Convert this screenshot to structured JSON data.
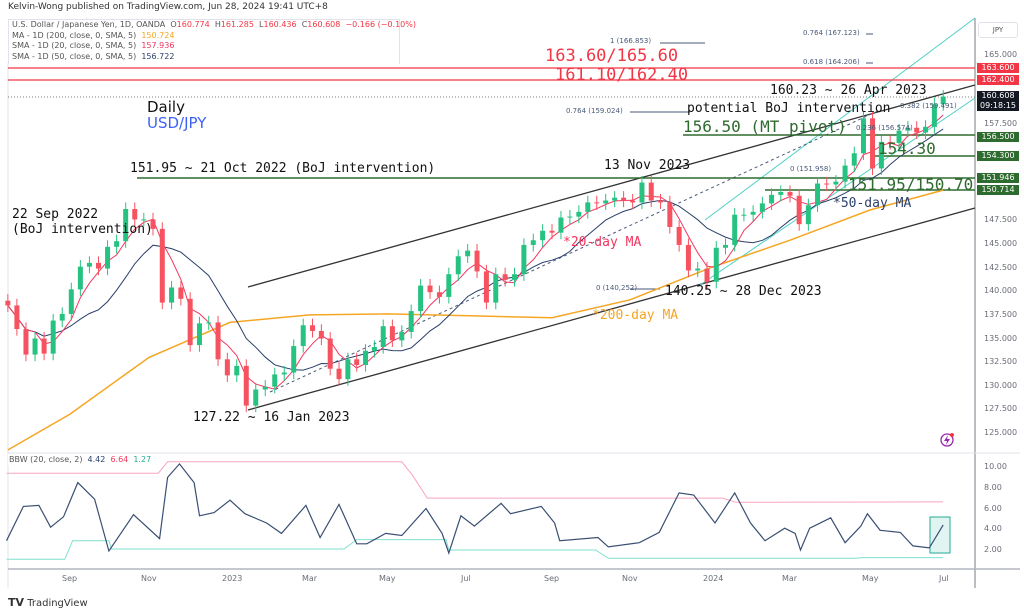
{
  "header": {
    "publisher": "Kelvin-Wong published on TradingView.com, Jun 28, 2024 19:41 UTC+8"
  },
  "legend": {
    "symbol": "U.S. Dollar / Japanese Yen, 1D, OANDA",
    "o_label": "O",
    "o": "160.774",
    "h_label": "H",
    "h": "161.285",
    "l_label": "L",
    "l": "160.436",
    "c_label": "C",
    "c": "160.608",
    "change": "−0.166 (−0.10%)",
    "ma200_label": "MA - 1D (200, close, 0, SMA, 5)",
    "ma200": "150.724",
    "sma20_label": "SMA - 1D (20, close, 0, SMA, 5)",
    "sma20": "157.936",
    "sma50_label": "SMA - 1D (50, close, 0, SMA, 5)",
    "sma50": "156.722",
    "bbw_label": "BBW (20, close, 2)",
    "bbw": "4.42",
    "bbw_upper": "6.64",
    "bbw_lower": "1.27"
  },
  "annotations": {
    "timeframe": "Daily",
    "pair": "USD/JPY",
    "r1": "163.60/165.60",
    "r2": "161.10/162.40",
    "apr_high": "160.23 ~ 26 Apr 2023",
    "boj_potential": "potential BoJ intervention",
    "pivot": "156.50 (MT pivot)",
    "s1": "154.30",
    "s2": "151.95/150.70",
    "ma50": "*50-day MA",
    "ma20": "*20-day MA",
    "ma200": "*200-day MA",
    "nov_high": "13 Nov 2023",
    "dec_low": "140.25 ~ 28 Dec 2023",
    "oct_high": "151.95 ~ 21 Oct 2022 (BoJ intervention)",
    "sep_int1": "22 Sep 2022",
    "sep_int2": "(BoJ intervention)",
    "jan_low": "127.22 ~ 16 Jan 2023"
  },
  "fib_labels": [
    "0.764 (167.123)",
    "0.618 (164.206)",
    "1 (166.853)",
    "0.764 (159.024)",
    "0.382 (159.491)",
    "0.236 (156.574)",
    "0 (151.958)",
    "0 (140,252)"
  ],
  "price_axis": {
    "currency": "JPY",
    "ticks": [
      "165.000",
      "157.500",
      "147.500",
      "145.000",
      "142.500",
      "140.000",
      "137.500",
      "135.000",
      "132.500",
      "130.000",
      "127.500",
      "125.000"
    ],
    "tags": {
      "r_upper": "163.600",
      "r_lower": "162.400",
      "last": "160.608",
      "countdown": "09:18:15",
      "pivot": "156.500",
      "s1": "154.300",
      "s2a": "151.946",
      "s2b": "150.714"
    }
  },
  "bbw_axis": {
    "ticks": [
      "10.00",
      "8.00",
      "6.00",
      "4.00",
      "2.00"
    ]
  },
  "time_axis": [
    "Sep",
    "Nov",
    "2023",
    "Mar",
    "May",
    "Jul",
    "Sep",
    "Nov",
    "2024",
    "Mar",
    "May",
    "Jul"
  ],
  "branding": "TradingView",
  "colors": {
    "up": "#26c281",
    "down": "#f7525f",
    "sma20": "#f2365f",
    "sma50": "#2a3f6b",
    "ma200": "#f5a623",
    "support": "#2e6b2e",
    "resistance": "#f23645",
    "bbw": "#3a4f73",
    "bbw_upper": "#f8a5c2",
    "bbw_lower": "#7fe0cf",
    "accent_blue": "#3d63f5"
  },
  "chart_data": [
    {
      "type": "candlestick",
      "ylim": [
        125,
        167.5
      ],
      "xlabel": "",
      "ylabel": "",
      "close": [
        [
          "2022-07-15",
          138.5
        ],
        [
          "2022-07-22",
          136.0
        ],
        [
          "2022-07-29",
          133.3
        ],
        [
          "2022-08-05",
          135.0
        ],
        [
          "2022-08-12",
          133.4
        ],
        [
          "2022-08-19",
          136.9
        ],
        [
          "2022-08-26",
          137.6
        ],
        [
          "2022-09-02",
          140.2
        ],
        [
          "2022-09-09",
          142.6
        ],
        [
          "2022-09-16",
          143.0
        ],
        [
          "2022-09-23",
          142.4
        ],
        [
          "2022-09-30",
          144.7
        ],
        [
          "2022-10-07",
          145.3
        ],
        [
          "2022-10-14",
          148.7
        ],
        [
          "2022-10-21",
          147.6
        ],
        [
          "2022-10-28",
          147.6
        ],
        [
          "2022-11-04",
          146.6
        ],
        [
          "2022-11-11",
          138.8
        ],
        [
          "2022-11-18",
          140.4
        ],
        [
          "2022-11-25",
          139.2
        ],
        [
          "2022-12-02",
          134.3
        ],
        [
          "2022-12-09",
          136.6
        ],
        [
          "2022-12-16",
          136.7
        ],
        [
          "2022-12-23",
          132.8
        ],
        [
          "2022-12-30",
          131.1
        ],
        [
          "2023-01-06",
          132.1
        ],
        [
          "2023-01-13",
          127.9
        ],
        [
          "2023-01-20",
          129.6
        ],
        [
          "2023-01-27",
          129.9
        ],
        [
          "2023-02-03",
          131.2
        ],
        [
          "2023-02-10",
          131.4
        ],
        [
          "2023-02-17",
          134.2
        ],
        [
          "2023-02-24",
          136.4
        ],
        [
          "2023-03-03",
          135.8
        ],
        [
          "2023-03-10",
          135.0
        ],
        [
          "2023-03-17",
          131.8
        ],
        [
          "2023-03-24",
          130.7
        ],
        [
          "2023-03-31",
          132.8
        ],
        [
          "2023-04-07",
          132.2
        ],
        [
          "2023-04-14",
          133.7
        ],
        [
          "2023-04-21",
          134.1
        ],
        [
          "2023-04-28",
          136.3
        ],
        [
          "2023-05-05",
          134.8
        ],
        [
          "2023-05-12",
          135.7
        ],
        [
          "2023-05-19",
          137.9
        ],
        [
          "2023-05-26",
          140.6
        ],
        [
          "2023-06-02",
          139.9
        ],
        [
          "2023-06-09",
          139.4
        ],
        [
          "2023-06-16",
          141.8
        ],
        [
          "2023-06-23",
          143.7
        ],
        [
          "2023-06-30",
          144.3
        ],
        [
          "2023-07-07",
          142.1
        ],
        [
          "2023-07-14",
          138.8
        ],
        [
          "2023-07-21",
          141.8
        ],
        [
          "2023-07-28",
          141.2
        ],
        [
          "2023-08-04",
          141.8
        ],
        [
          "2023-08-11",
          144.9
        ],
        [
          "2023-08-18",
          145.4
        ],
        [
          "2023-08-25",
          146.4
        ],
        [
          "2023-09-01",
          146.2
        ],
        [
          "2023-09-08",
          147.8
        ],
        [
          "2023-09-15",
          147.9
        ],
        [
          "2023-09-22",
          148.4
        ],
        [
          "2023-09-29",
          149.4
        ],
        [
          "2023-10-06",
          149.3
        ],
        [
          "2023-10-13",
          149.6
        ],
        [
          "2023-10-20",
          149.9
        ],
        [
          "2023-10-27",
          149.6
        ],
        [
          "2023-11-03",
          149.4
        ],
        [
          "2023-11-10",
          151.5
        ],
        [
          "2023-11-17",
          149.6
        ],
        [
          "2023-11-24",
          149.4
        ],
        [
          "2023-12-01",
          146.8
        ],
        [
          "2023-12-08",
          144.9
        ],
        [
          "2023-12-15",
          142.2
        ],
        [
          "2023-12-22",
          142.4
        ],
        [
          "2023-12-29",
          141.0
        ],
        [
          "2024-01-05",
          144.6
        ],
        [
          "2024-01-12",
          144.9
        ],
        [
          "2024-01-19",
          148.1
        ],
        [
          "2024-01-26",
          148.1
        ],
        [
          "2024-02-02",
          148.4
        ],
        [
          "2024-02-09",
          149.3
        ],
        [
          "2024-02-16",
          150.2
        ],
        [
          "2024-02-23",
          150.5
        ],
        [
          "2024-03-01",
          150.1
        ],
        [
          "2024-03-08",
          147.1
        ],
        [
          "2024-03-15",
          149.1
        ],
        [
          "2024-03-22",
          151.4
        ],
        [
          "2024-03-29",
          151.3
        ],
        [
          "2024-04-05",
          151.6
        ],
        [
          "2024-04-12",
          153.3
        ],
        [
          "2024-04-19",
          154.6
        ],
        [
          "2024-04-26",
          158.3
        ],
        [
          "2024-05-03",
          153.0
        ],
        [
          "2024-05-10",
          155.8
        ],
        [
          "2024-05-17",
          155.7
        ],
        [
          "2024-05-24",
          157.0
        ],
        [
          "2024-05-31",
          157.3
        ],
        [
          "2024-06-07",
          156.8
        ],
        [
          "2024-06-14",
          157.4
        ],
        [
          "2024-06-21",
          159.8
        ],
        [
          "2024-06-28",
          160.6
        ]
      ],
      "ma200": [
        [
          "2022-07-15",
          123.2
        ],
        [
          "2022-09-01",
          127.0
        ],
        [
          "2022-11-01",
          133.0
        ],
        [
          "2023-01-01",
          136.7
        ],
        [
          "2023-03-01",
          137.5
        ],
        [
          "2023-05-01",
          137.6
        ],
        [
          "2023-07-01",
          137.4
        ],
        [
          "2023-09-01",
          137.2
        ],
        [
          "2023-11-01",
          139.1
        ],
        [
          "2024-01-01",
          142.5
        ],
        [
          "2024-03-01",
          145.4
        ],
        [
          "2024-05-01",
          148.6
        ],
        [
          "2024-06-28",
          150.7
        ]
      ],
      "levels": {
        "resistance": [
          163.6,
          162.4
        ],
        "support": [
          156.5,
          154.3,
          151.95,
          150.7
        ],
        "last": 160.608
      }
    },
    {
      "type": "line",
      "ylim": [
        0,
        11.5
      ],
      "bbw": [
        [
          "2022-07-14",
          2.9
        ],
        [
          "2022-07-27",
          6.2
        ],
        [
          "2022-08-08",
          6.3
        ],
        [
          "2022-08-17",
          4.2
        ],
        [
          "2022-08-27",
          5.2
        ],
        [
          "2022-09-07",
          8.5
        ],
        [
          "2022-09-20",
          6.9
        ],
        [
          "2022-10-01",
          1.9
        ],
        [
          "2022-10-20",
          5.4
        ],
        [
          "2022-11-09",
          3.1
        ],
        [
          "2022-11-15",
          9.0
        ],
        [
          "2022-11-24",
          10.3
        ],
        [
          "2022-12-05",
          8.5
        ],
        [
          "2022-12-09",
          5.3
        ],
        [
          "2022-12-20",
          5.6
        ],
        [
          "2023-01-01",
          6.8
        ],
        [
          "2023-01-12",
          5.5
        ],
        [
          "2023-01-28",
          4.6
        ],
        [
          "2023-02-08",
          3.6
        ],
        [
          "2023-02-26",
          6.3
        ],
        [
          "2023-03-09",
          3.2
        ],
        [
          "2023-03-24",
          6.4
        ],
        [
          "2023-04-07",
          2.6
        ],
        [
          "2023-04-15",
          2.6
        ],
        [
          "2023-04-30",
          3.6
        ],
        [
          "2023-05-12",
          3.4
        ],
        [
          "2023-05-30",
          6.0
        ],
        [
          "2023-06-11",
          3.6
        ],
        [
          "2023-06-16",
          1.7
        ],
        [
          "2023-06-25",
          5.3
        ],
        [
          "2023-07-05",
          4.3
        ],
        [
          "2023-07-25",
          6.5
        ],
        [
          "2023-08-01",
          5.5
        ],
        [
          "2023-08-24",
          6.2
        ],
        [
          "2023-09-03",
          4.6
        ],
        [
          "2023-09-07",
          2.9
        ],
        [
          "2023-10-07",
          3.2
        ],
        [
          "2023-10-15",
          2.3
        ],
        [
          "2023-11-08",
          2.7
        ],
        [
          "2023-11-23",
          3.7
        ],
        [
          "2023-12-08",
          7.5
        ],
        [
          "2023-12-19",
          7.3
        ],
        [
          "2024-01-04",
          4.6
        ],
        [
          "2024-01-19",
          7.5
        ],
        [
          "2024-01-31",
          4.6
        ],
        [
          "2024-02-11",
          2.9
        ],
        [
          "2024-02-26",
          4.1
        ],
        [
          "2024-03-05",
          3.6
        ],
        [
          "2024-03-09",
          2.0
        ],
        [
          "2024-03-16",
          4.1
        ],
        [
          "2024-04-01",
          5.1
        ],
        [
          "2024-04-12",
          2.7
        ],
        [
          "2024-04-24",
          4.3
        ],
        [
          "2024-04-29",
          5.5
        ],
        [
          "2024-05-09",
          3.9
        ],
        [
          "2024-05-25",
          3.7
        ],
        [
          "2024-06-04",
          2.4
        ],
        [
          "2024-06-17",
          2.2
        ],
        [
          "2024-06-28",
          4.42
        ]
      ],
      "upper": [
        [
          "2022-07-14",
          9.4
        ],
        [
          "2022-11-08",
          9.4
        ],
        [
          "2022-11-15",
          10.5
        ],
        [
          "2023-05-12",
          10.5
        ],
        [
          "2023-05-20",
          9.2
        ],
        [
          "2023-05-31",
          7.0
        ],
        [
          "2024-01-10",
          7.0
        ],
        [
          "2024-01-20",
          6.6
        ],
        [
          "2024-06-28",
          6.64
        ]
      ],
      "lower": [
        [
          "2022-07-14",
          1.1
        ],
        [
          "2022-08-28",
          1.1
        ],
        [
          "2022-09-03",
          2.9
        ],
        [
          "2022-10-01",
          2.9
        ],
        [
          "2022-10-03",
          2.1
        ],
        [
          "2023-03-28",
          2.1
        ],
        [
          "2023-04-07",
          3.0
        ],
        [
          "2023-06-14",
          3.0
        ],
        [
          "2023-06-16",
          2.0
        ],
        [
          "2023-10-05",
          2.0
        ],
        [
          "2023-10-15",
          1.2
        ],
        [
          "2024-04-20",
          1.2
        ],
        [
          "2024-04-25",
          1.27
        ],
        [
          "2024-06-28",
          1.27
        ]
      ]
    }
  ]
}
